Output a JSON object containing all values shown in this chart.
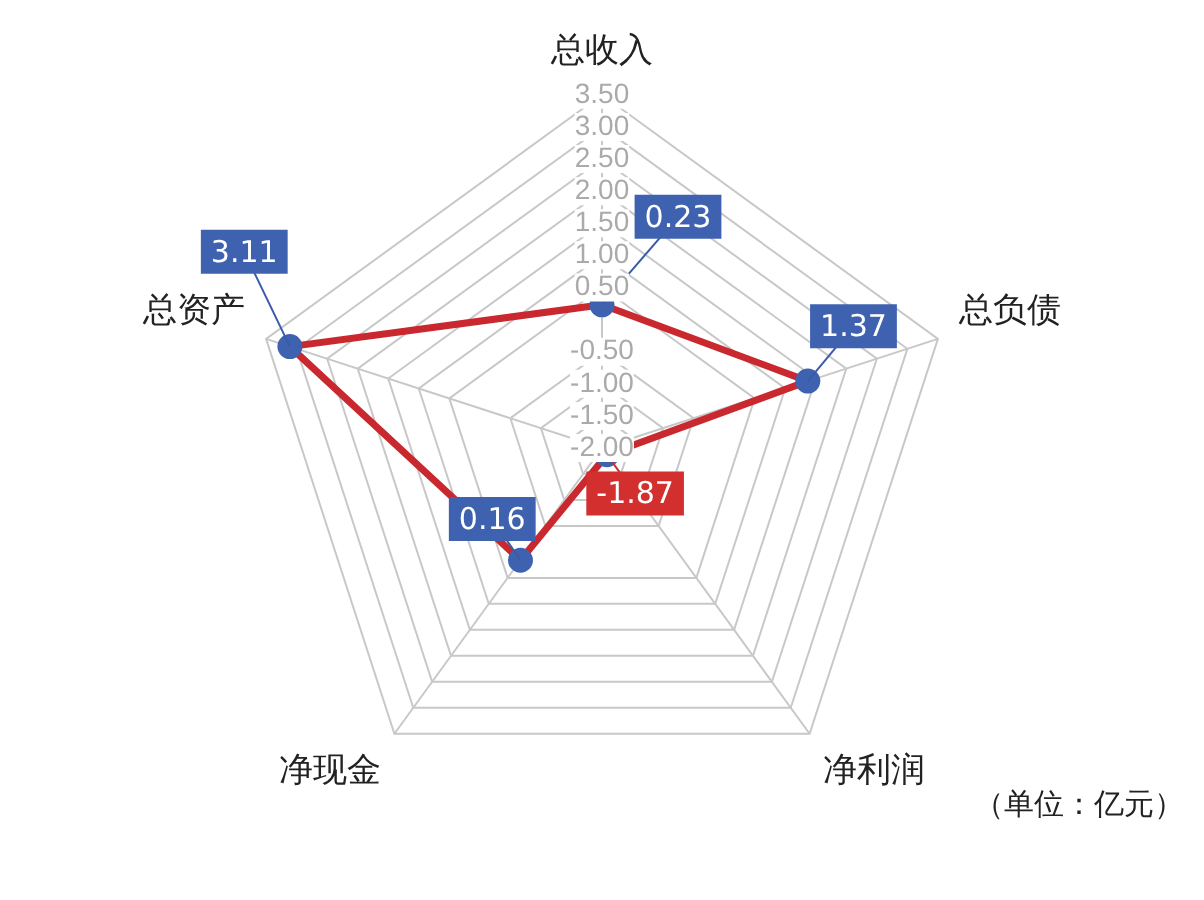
{
  "chart_data": {
    "type": "radar",
    "categories": [
      "总收入",
      "总负债",
      "净利润",
      "净现金",
      "总资产"
    ],
    "series": [
      {
        "color": "#c8282e",
        "values": [
          0.23,
          1.37,
          -1.87,
          0.16,
          3.11
        ]
      }
    ],
    "ylim": [
      -2,
      3.5
    ],
    "yticks": [
      {
        "value": -2,
        "label": "-2.00"
      },
      {
        "value": -1.5,
        "label": "-1.50"
      },
      {
        "value": -1,
        "label": "-1.00"
      },
      {
        "value": -0.5,
        "label": "-0.50"
      },
      {
        "value": 0.5,
        "label": "0.50"
      },
      {
        "value": 1,
        "label": "1.00"
      },
      {
        "value": 1.5,
        "label": "1.50"
      },
      {
        "value": 2,
        "label": "2.00"
      },
      {
        "value": 2.5,
        "label": "2.50"
      },
      {
        "value": 3,
        "label": "3.00"
      },
      {
        "value": 3.5,
        "label": "3.50"
      }
    ],
    "data_labels": true,
    "grid": true,
    "marker": "circle",
    "legend": false,
    "annotations": [
      "（单位：亿元）"
    ]
  }
}
